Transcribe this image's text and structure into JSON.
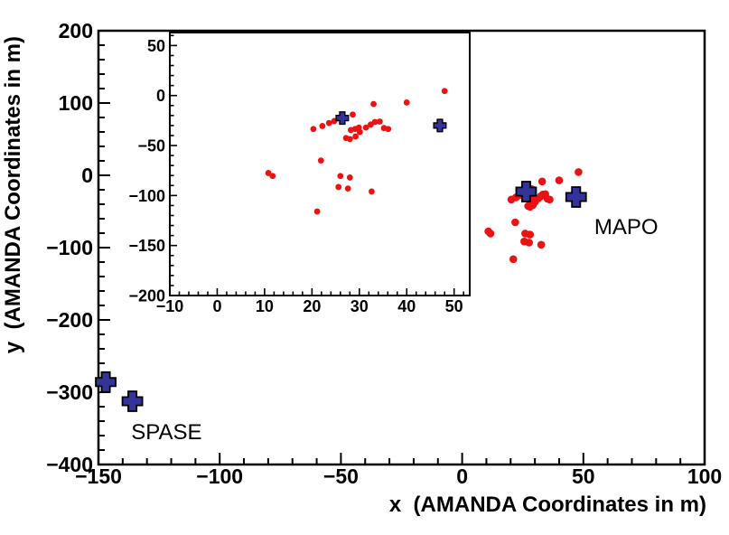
{
  "figure": {
    "background": "#ffffff",
    "frame_color": "#000000"
  },
  "chart_data": {
    "type": "scatter",
    "title": "",
    "main_axes": {
      "xlabel": "x  (AMANDA Coordinates in m)",
      "ylabel": "y  (AMANDA Coordinates in m)",
      "xlim": [
        -150,
        100
      ],
      "ylim": [
        -400,
        200
      ],
      "xticks": [
        -150,
        -100,
        -50,
        0,
        50,
        100
      ],
      "yticks": [
        200,
        100,
        0,
        -100,
        -200,
        -300,
        -400
      ],
      "x_minor_step": 10,
      "y_minor_step": 20,
      "grid": false,
      "legend": "none"
    },
    "inset_axes": {
      "xlim": [
        -10,
        53.3
      ],
      "ylim": [
        -200,
        63
      ],
      "xticks": [
        -10,
        0,
        10,
        20,
        30,
        40,
        50
      ],
      "yticks": [
        50,
        0,
        -50,
        -100,
        -150,
        -200
      ],
      "x_minor_step": 2,
      "y_minor_step": 10,
      "grid": false
    },
    "annotations": [
      {
        "text": "SPASE",
        "x": -136.5,
        "y": -365
      },
      {
        "text": "MAPO",
        "x": 54.5,
        "y": -81.3
      }
    ],
    "series": [
      {
        "name": "red-survey-points",
        "marker": "dot",
        "color": "#ee1111",
        "points": [
          [
            48,
            4.5
          ],
          [
            40,
            -7
          ],
          [
            33,
            -8.5
          ],
          [
            28.6,
            -19
          ],
          [
            20.3,
            -33.5
          ],
          [
            22.2,
            -30.5
          ],
          [
            23.6,
            -27.5
          ],
          [
            24.7,
            -25.5
          ],
          [
            28.2,
            -34.5
          ],
          [
            29.1,
            -33.5
          ],
          [
            29.9,
            -32
          ],
          [
            30.1,
            -36.5
          ],
          [
            31.4,
            -32
          ],
          [
            32.4,
            -29
          ],
          [
            33.3,
            -26.5
          ],
          [
            34.3,
            -26
          ],
          [
            35.2,
            -32.5
          ],
          [
            36.1,
            -33.5
          ],
          [
            27.2,
            -42.5
          ],
          [
            28,
            -43.5
          ],
          [
            29.2,
            -41
          ],
          [
            21.9,
            -65
          ],
          [
            10.8,
            -77.5
          ],
          [
            11.7,
            -80.5
          ],
          [
            26,
            -80.5
          ],
          [
            28,
            -82
          ],
          [
            25.6,
            -91.5
          ],
          [
            27.6,
            -93
          ],
          [
            32.6,
            -96
          ],
          [
            21.1,
            -116
          ]
        ]
      },
      {
        "name": "mapo-station-markers",
        "marker": "cross",
        "color": "#333399",
        "points": [
          [
            26.4,
            -22.5
          ],
          [
            47,
            -30
          ]
        ]
      },
      {
        "name": "spase-station-markers",
        "marker": "cross",
        "color": "#333399",
        "points": [
          [
            -147,
            -286
          ],
          [
            -136,
            -312.5
          ]
        ]
      }
    ]
  }
}
